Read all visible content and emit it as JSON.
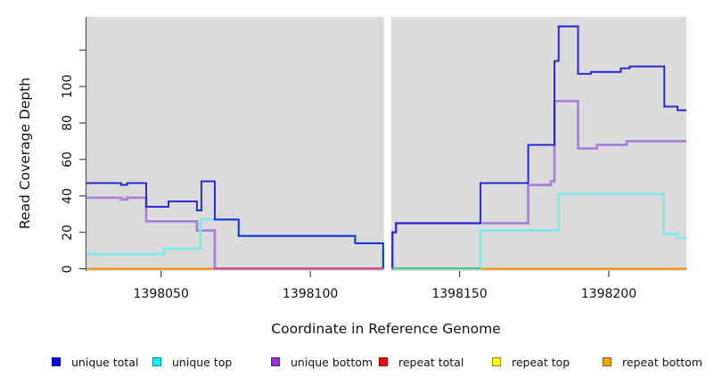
{
  "chart_data": {
    "type": "line",
    "subtype": "step-coverage",
    "title": "",
    "xlabel": "Coordinate in Reference Genome",
    "ylabel": "Read Coverage Depth",
    "xlim": [
      1398025,
      1398226
    ],
    "ylim": [
      -1.2,
      138.2
    ],
    "plot_background": "#DBDBDB",
    "grid": "off",
    "gap": {
      "from": 1398124.4,
      "to": 1398127.4,
      "color": "#FFFFFF"
    },
    "x_ticks": [
      {
        "v": 1398050,
        "label": "1398050"
      },
      {
        "v": 1398100,
        "label": "1398100"
      },
      {
        "v": 1398150,
        "label": "1398150"
      },
      {
        "v": 1398200,
        "label": "1398200"
      }
    ],
    "y_ticks": [
      {
        "v": 0,
        "label": "0"
      },
      {
        "v": 20,
        "label": "20"
      },
      {
        "v": 40,
        "label": "40"
      },
      {
        "v": 60,
        "label": "60"
      },
      {
        "v": 80,
        "label": "80"
      },
      {
        "v": 100,
        "label": "100"
      },
      {
        "v": 120,
        "label": ""
      }
    ],
    "series": [
      {
        "name": "unique total",
        "color": "#2222D6",
        "width": 1.9,
        "segments": [
          [
            [
              1398025,
              47
            ],
            [
              1398036.6,
              46
            ],
            [
              1398038.6,
              47
            ],
            [
              1398045,
              34
            ],
            [
              1398052.5,
              37
            ],
            [
              1398062,
              32
            ],
            [
              1398063.5,
              48
            ],
            [
              1398068,
              27
            ],
            [
              1398076,
              18
            ],
            [
              1398115,
              14
            ],
            [
              1398124.4,
              0
            ]
          ],
          [
            [
              1398127.4,
              0
            ],
            [
              1398127.5,
              20
            ],
            [
              1398128.7,
              25
            ],
            [
              1398157,
              47
            ],
            [
              1398173,
              68
            ],
            [
              1398181.8,
              114
            ],
            [
              1398183.2,
              133
            ],
            [
              1398189.7,
              107
            ],
            [
              1398194,
              108
            ],
            [
              1398204,
              110
            ],
            [
              1398207,
              111
            ],
            [
              1398218.6,
              89
            ],
            [
              1398223,
              87
            ],
            [
              1398226,
              87
            ]
          ]
        ]
      },
      {
        "name": "unique top",
        "color": "#7FE8E8",
        "width": 2.7,
        "segments": [
          [
            [
              1398025,
              8
            ],
            [
              1398051,
              11
            ],
            [
              1398063.2,
              27
            ],
            [
              1398076,
              18
            ],
            [
              1398115,
              14
            ],
            [
              1398124.4,
              0
            ]
          ],
          [
            [
              1398127.4,
              0
            ],
            [
              1398157,
              21
            ],
            [
              1398183.2,
              41
            ],
            [
              1398218.4,
              19
            ],
            [
              1398223,
              17
            ],
            [
              1398226,
              17
            ]
          ]
        ]
      },
      {
        "name": "unique bottom",
        "color": "#A97FD9",
        "width": 2.7,
        "segments": [
          [
            [
              1398025,
              39
            ],
            [
              1398036.6,
              38
            ],
            [
              1398038.6,
              39
            ],
            [
              1398045,
              26
            ],
            [
              1398062,
              21
            ],
            [
              1398068,
              0
            ],
            [
              1398124.4,
              0
            ]
          ],
          [
            [
              1398127.4,
              0
            ],
            [
              1398127.5,
              20
            ],
            [
              1398128.7,
              25
            ],
            [
              1398173,
              46
            ],
            [
              1398180.6,
              48
            ],
            [
              1398181.8,
              92
            ],
            [
              1398189.7,
              66
            ],
            [
              1398196,
              68
            ],
            [
              1398206,
              70
            ],
            [
              1398226,
              70
            ]
          ]
        ]
      },
      {
        "name": "repeat total",
        "color": "#E60000",
        "width": 2,
        "segments": [
          [
            [
              1398025,
              0
            ],
            [
              1398124.4,
              0
            ]
          ],
          [
            [
              1398127.4,
              0
            ],
            [
              1398226,
              0
            ]
          ]
        ]
      },
      {
        "name": "repeat top",
        "color": "#FFFF00",
        "width": 2,
        "segments": [
          [
            [
              1398025,
              0
            ],
            [
              1398124.4,
              0
            ]
          ],
          [
            [
              1398127.4,
              0
            ],
            [
              1398226,
              0
            ]
          ]
        ]
      },
      {
        "name": "repeat bottom",
        "color": "#FF8C00",
        "width": 2.2,
        "segments": [
          [
            [
              1398025,
              0
            ],
            [
              1398124.4,
              0
            ]
          ],
          [
            [
              1398127.4,
              0
            ],
            [
              1398226,
              0
            ]
          ]
        ]
      }
    ],
    "overlap_tints": [
      {
        "from": 1398068,
        "to": 1398124.4,
        "value": 0,
        "color": "#D4507E",
        "note": "unique bottom at 0 blended over repeat bottom"
      },
      {
        "from": 1398127.4,
        "to": 1398157,
        "value": 0,
        "color": "#59BE6E",
        "note": "unique top at 0 blended over repeat bottom"
      }
    ],
    "draw_order": [
      "repeat total",
      "repeat top",
      "repeat bottom",
      "unique bottom",
      "unique top",
      "unique total"
    ]
  },
  "legend": {
    "items": [
      {
        "label": "unique total",
        "fill": "#0000EE",
        "border": "#00008B"
      },
      {
        "label": "unique top",
        "fill": "#00FFFF",
        "border": "#008B8B"
      },
      {
        "label": "unique bottom",
        "fill": "#9932CC",
        "border": "#551A8B"
      },
      {
        "label": "repeat total",
        "fill": "#FF0000",
        "border": "#8B0000"
      },
      {
        "label": "repeat top",
        "fill": "#FFFF00",
        "border": "#8B8B00"
      },
      {
        "label": "repeat bottom",
        "fill": "#FFA500",
        "border": "#8B5A00"
      }
    ]
  },
  "axis_style": {
    "axis_line_color": "#555555",
    "tick_color": "#333333",
    "tick_label_color": "#111111"
  }
}
